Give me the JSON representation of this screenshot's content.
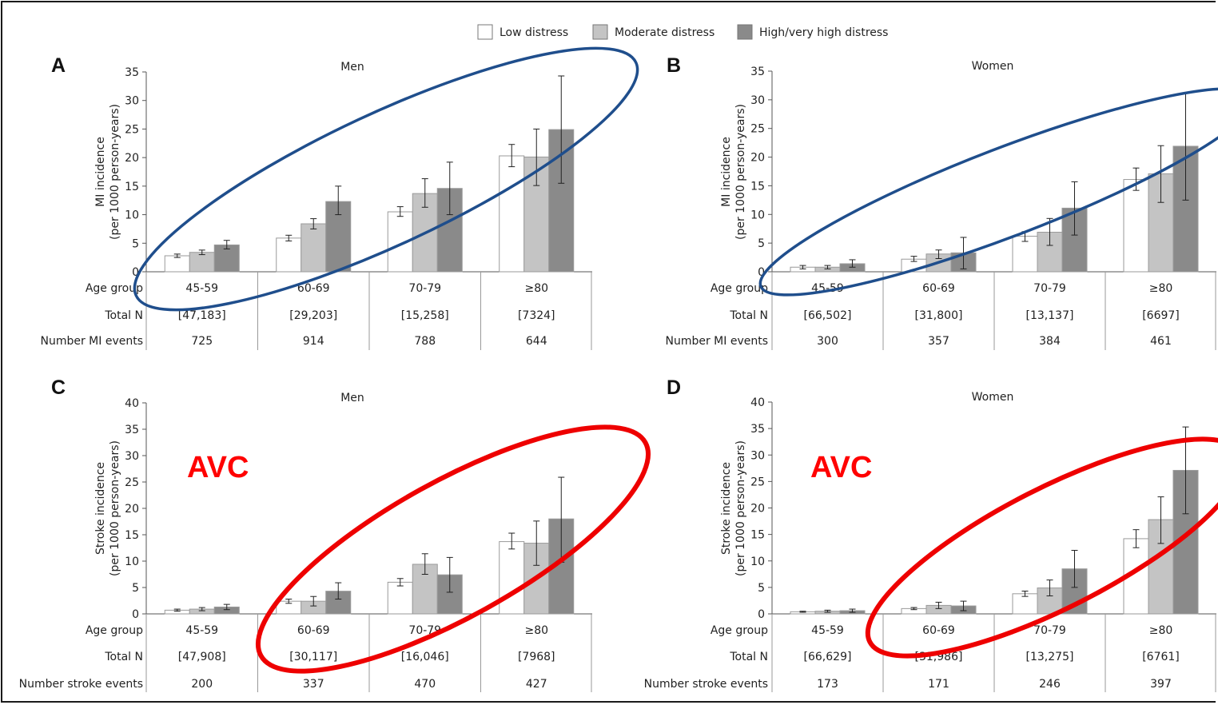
{
  "legend": [
    {
      "label": "Low distress",
      "color": "#ffffff"
    },
    {
      "label": "Moderate distress",
      "color": "#c4c4c4"
    },
    {
      "label": "High/very high distress",
      "color": "#8a8a8a"
    }
  ],
  "colors": {
    "low": "#ffffff",
    "moderate": "#c4c4c4",
    "high": "#8a8a8a",
    "ellipse_mi": "#1f4e8c",
    "ellipse_stroke": "#ee0000",
    "annotation": "#ff0000"
  },
  "chart_data": [
    {
      "type": "bar",
      "panel": "A",
      "title": "Men",
      "ylabel": "MI incidence\n(per 1000 person-years)",
      "ylim": [
        0,
        35
      ],
      "yticks": [
        "0",
        "5",
        "10",
        "15",
        "20",
        "25",
        "30",
        "35"
      ],
      "categories": [
        "45-59",
        "60-69",
        "70-79",
        "≥80"
      ],
      "series": [
        {
          "name": "Low distress",
          "values": [
            2.8,
            5.9,
            10.5,
            20.3
          ],
          "err_low": [
            2.5,
            5.4,
            9.7,
            18.4
          ],
          "err_high": [
            3.1,
            6.4,
            11.4,
            22.3
          ]
        },
        {
          "name": "Moderate distress",
          "values": [
            3.4,
            8.4,
            13.7,
            20.1
          ],
          "err_low": [
            3.0,
            7.5,
            11.3,
            15.1
          ],
          "err_high": [
            3.8,
            9.3,
            16.3,
            25.0
          ]
        },
        {
          "name": "High/very high distress",
          "values": [
            4.7,
            12.3,
            14.6,
            24.9
          ],
          "err_low": [
            4.0,
            10.0,
            10.0,
            15.5
          ],
          "err_high": [
            5.5,
            15.0,
            19.2,
            34.3
          ]
        }
      ],
      "table": {
        "rows": [
          {
            "label": "Age group",
            "values": [
              "45-59",
              "60-69",
              "70-79",
              "≥80"
            ]
          },
          {
            "label": "Total N",
            "values": [
              "[47,183]",
              "[29,203]",
              "[15,258]",
              "[7324]"
            ]
          },
          {
            "label": "Number MI events",
            "values": [
              "725",
              "914",
              "788",
              "644"
            ]
          }
        ]
      }
    },
    {
      "type": "bar",
      "panel": "B",
      "title": "Women",
      "ylabel": "MI incidence\n(per 1000 person-years)",
      "ylim": [
        0,
        35
      ],
      "yticks": [
        "0",
        "5",
        "10",
        "15",
        "20",
        "25",
        "30",
        "35"
      ],
      "categories": [
        "45-59",
        "60-69",
        "70-79",
        "≥80"
      ],
      "series": [
        {
          "name": "Low distress",
          "values": [
            0.8,
            2.2,
            6.2,
            16.1
          ],
          "err_low": [
            0.5,
            1.8,
            5.3,
            14.2
          ],
          "err_high": [
            1.1,
            2.7,
            7.0,
            18.1
          ]
        },
        {
          "name": "Moderate distress",
          "values": [
            0.8,
            3.1,
            6.9,
            17.1
          ],
          "err_low": [
            0.5,
            2.3,
            4.6,
            12.1
          ],
          "err_high": [
            1.1,
            3.8,
            9.3,
            22.0
          ]
        },
        {
          "name": "High/very high distress",
          "values": [
            1.4,
            3.3,
            11.1,
            21.9
          ],
          "err_low": [
            0.8,
            0.5,
            6.4,
            12.5
          ],
          "err_high": [
            2.1,
            6.0,
            15.7,
            31.2
          ]
        }
      ],
      "table": {
        "rows": [
          {
            "label": "Age group",
            "values": [
              "45-59",
              "60-69",
              "70-79",
              "≥80"
            ]
          },
          {
            "label": "Total N",
            "values": [
              "[66,502]",
              "[31,800]",
              "[13,137]",
              "[6697]"
            ]
          },
          {
            "label": "Number MI events",
            "values": [
              "300",
              "357",
              "384",
              "461"
            ]
          }
        ]
      }
    },
    {
      "type": "bar",
      "panel": "C",
      "title": "Men",
      "ylabel": "Stroke incidence\n(per 1000 person-years)",
      "ylim": [
        0,
        40
      ],
      "yticks": [
        "0",
        "5",
        "10",
        "15",
        "20",
        "25",
        "30",
        "35",
        "40"
      ],
      "categories": [
        "45-59",
        "60-69",
        "70-79",
        "≥80"
      ],
      "series": [
        {
          "name": "Low distress",
          "values": [
            0.7,
            2.4,
            6.0,
            13.7
          ],
          "err_low": [
            0.5,
            2.0,
            5.3,
            12.3
          ],
          "err_high": [
            0.9,
            2.8,
            6.7,
            15.3
          ]
        },
        {
          "name": "Moderate distress",
          "values": [
            0.9,
            2.4,
            9.4,
            13.4
          ],
          "err_low": [
            0.6,
            1.5,
            7.5,
            9.2
          ],
          "err_high": [
            1.2,
            3.3,
            11.4,
            17.6
          ]
        },
        {
          "name": "High/very high distress",
          "values": [
            1.3,
            4.3,
            7.4,
            18.0
          ],
          "err_low": [
            0.8,
            2.8,
            4.1,
            9.8
          ],
          "err_high": [
            1.8,
            5.9,
            10.7,
            25.9
          ]
        }
      ],
      "table": {
        "rows": [
          {
            "label": "Age group",
            "values": [
              "45-59",
              "60-69",
              "70-79",
              "≥80"
            ]
          },
          {
            "label": "Total N",
            "values": [
              "[47,908]",
              "[30,117]",
              "[16,046]",
              "[7968]"
            ]
          },
          {
            "label": "Number stroke events",
            "values": [
              "200",
              "337",
              "470",
              "427"
            ]
          }
        ]
      }
    },
    {
      "type": "bar",
      "panel": "D",
      "title": "Women",
      "ylabel": "Stroke incidence\n(per 1000 person-years)",
      "ylim": [
        0,
        40
      ],
      "yticks": [
        "0",
        "5",
        "10",
        "15",
        "20",
        "25",
        "30",
        "35",
        "40"
      ],
      "categories": [
        "45-59",
        "60-69",
        "70-79",
        "≥80"
      ],
      "series": [
        {
          "name": "Low distress",
          "values": [
            0.4,
            1.0,
            3.8,
            14.2
          ],
          "err_low": [
            0.3,
            0.8,
            3.3,
            12.5
          ],
          "err_high": [
            0.5,
            1.2,
            4.3,
            15.9
          ]
        },
        {
          "name": "Moderate distress",
          "values": [
            0.5,
            1.6,
            4.9,
            17.8
          ],
          "err_low": [
            0.3,
            1.0,
            3.4,
            13.3
          ],
          "err_high": [
            0.7,
            2.2,
            6.4,
            22.1
          ]
        },
        {
          "name": "High/very high distress",
          "values": [
            0.6,
            1.5,
            8.5,
            27.1
          ],
          "err_low": [
            0.3,
            0.6,
            5.0,
            18.9
          ],
          "err_high": [
            0.9,
            2.4,
            12.0,
            35.3
          ]
        }
      ],
      "table": {
        "rows": [
          {
            "label": "Age group",
            "values": [
              "45-59",
              "60-69",
              "70-79",
              "≥80"
            ]
          },
          {
            "label": "Total N",
            "values": [
              "[66,629]",
              "[31,986]",
              "[13,275]",
              "[6761]"
            ]
          },
          {
            "label": "Number stroke events",
            "values": [
              "173",
              "171",
              "246",
              "397"
            ]
          }
        ]
      }
    }
  ],
  "annotations": {
    "stroke_label": "AVC"
  }
}
